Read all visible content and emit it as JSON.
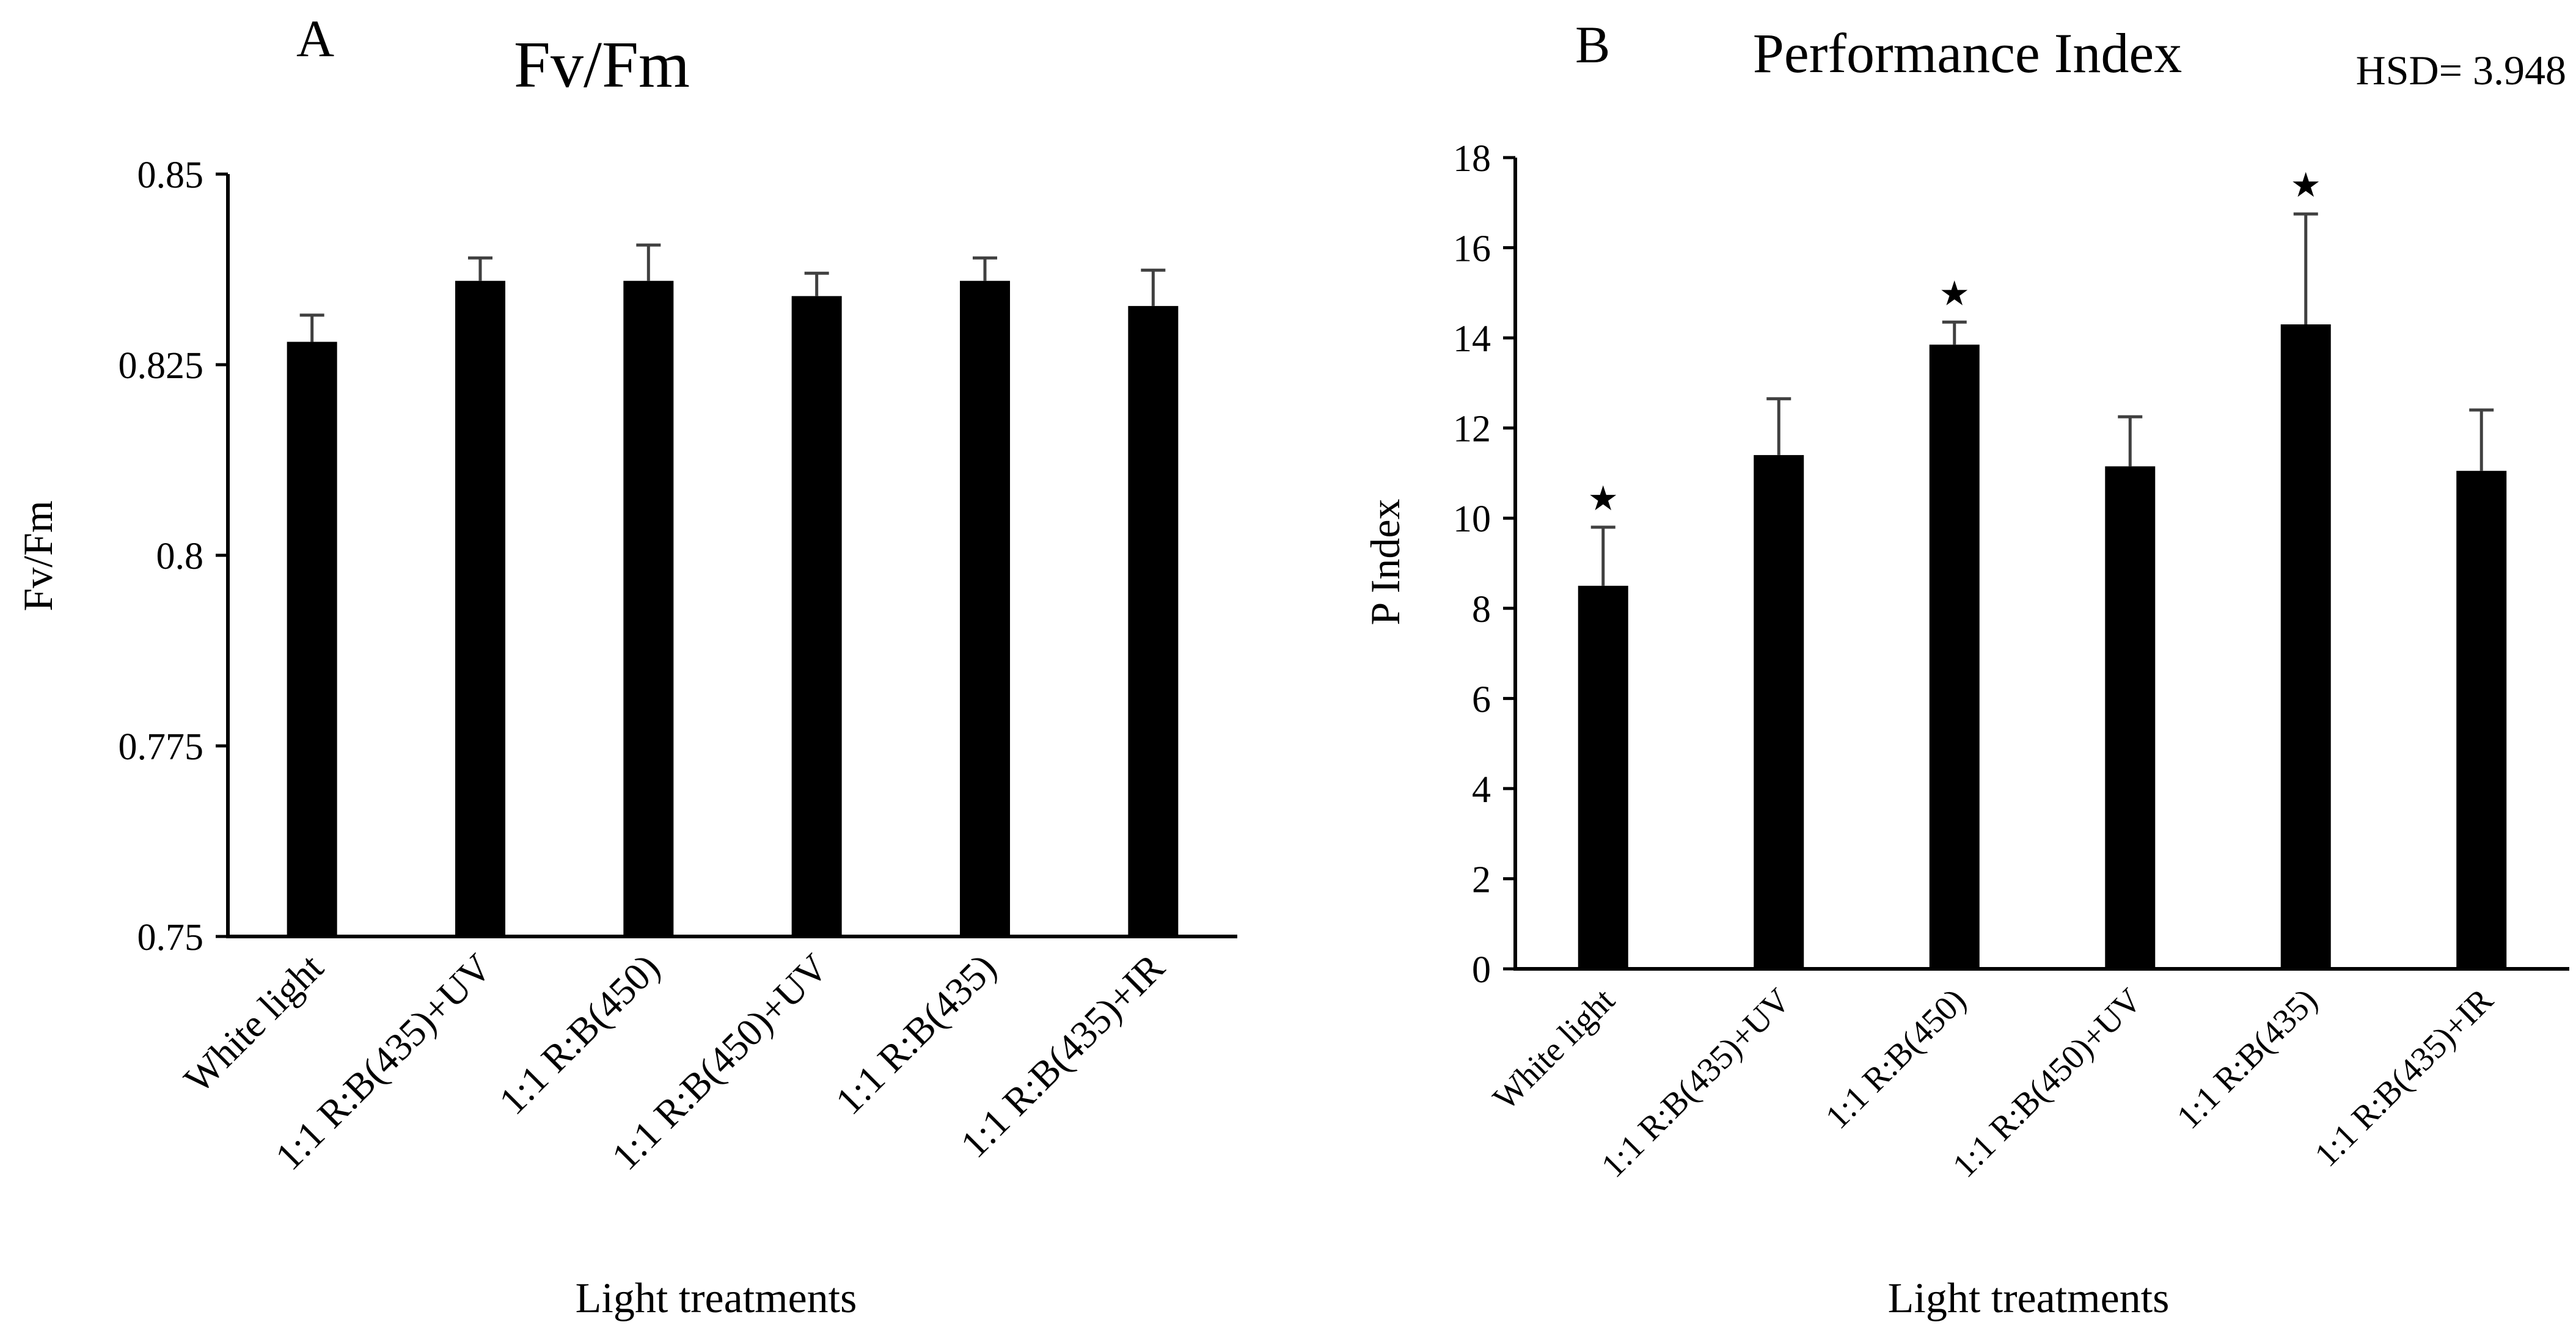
{
  "chart_data": [
    {
      "type": "bar",
      "panel_label": "A",
      "title": "Fv/Fm",
      "xlabel": "Light treatments",
      "ylabel": "Fv/Fm",
      "categories": [
        "White light",
        "1:1 R:B(435)+UV",
        "1:1 R:B(450)",
        "1:1 R:B(450)+UV",
        "1:1 R:B(435)",
        "1:1 R:B(435)+IR"
      ],
      "values": [
        0.828,
        0.836,
        0.836,
        0.834,
        0.836,
        0.8327
      ],
      "errors": [
        0.0035,
        0.003,
        0.0047,
        0.003,
        0.003,
        0.0047
      ],
      "yticks": [
        "0.75",
        "0.775",
        "0.8",
        "0.825",
        "0.85"
      ],
      "ylim": [
        0.75,
        0.85
      ],
      "annotations": [],
      "bar_color": "#000000",
      "error_color": "#404040"
    },
    {
      "type": "bar",
      "panel_label": "B",
      "title": "Performance Index",
      "note": "HSD= 3.948",
      "xlabel": "Light treatments",
      "ylabel": "P Index",
      "categories": [
        "White light",
        "1:1 R:B(435)+UV",
        "1:1 R:B(450)",
        "1:1 R:B(450)+UV",
        "1:1 R:B(435)",
        "1:1 R:B(435)+IR"
      ],
      "values": [
        8.5,
        11.4,
        13.85,
        11.15,
        14.3,
        11.05
      ],
      "errors": [
        1.3,
        1.25,
        0.5,
        1.1,
        2.45,
        1.35
      ],
      "yticks": [
        "0",
        "2",
        "4",
        "6",
        "8",
        "10",
        "12",
        "14",
        "16",
        "18"
      ],
      "ylim": [
        0,
        18
      ],
      "annotations": [
        "★",
        "",
        "★",
        "",
        "★",
        ""
      ],
      "bar_color": "#000000",
      "error_color": "#404040"
    }
  ]
}
